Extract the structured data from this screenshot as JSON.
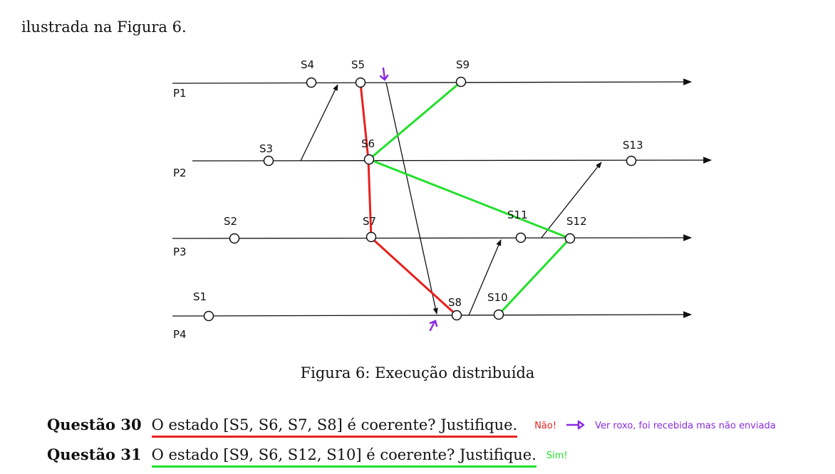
{
  "intro": "ilustrada na Figura 6.",
  "figure": {
    "processes": [
      "P1",
      "P2",
      "P3",
      "P4"
    ],
    "states": {
      "s1": "S1",
      "s2": "S2",
      "s3": "S3",
      "s4": "S4",
      "s5": "S5",
      "s6": "S6",
      "s7": "S7",
      "s8": "S8",
      "s9": "S9",
      "s10": "S10",
      "s11": "S11",
      "s12": "S12",
      "s13": "S13"
    },
    "caption": "Figura 6: Execução distribuída"
  },
  "questions": [
    {
      "number": "Questão 30",
      "text": "O estado [S5, S6, S7, S8] é coerente? Justifique.",
      "answer": "Não!",
      "note": "Ver roxo, foi recebida mas não enviada"
    },
    {
      "number": "Questão 31",
      "text": "O estado [S9, S6, S12, S10] é coerente? Justifique.",
      "answer": "Sim!"
    }
  ],
  "colors": {
    "red_cut": "#e8201e",
    "green_cut": "#22e02a",
    "purple_annotation": "#8a2be2"
  }
}
